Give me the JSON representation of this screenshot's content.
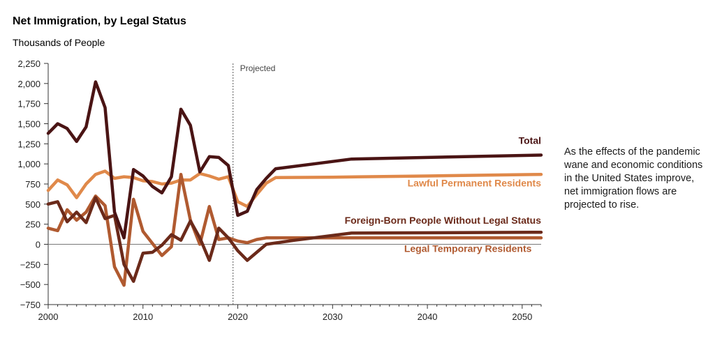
{
  "chart_data": {
    "type": "line",
    "title": "Net Immigration, by Legal Status",
    "ylabel": "Thousands of People",
    "xlabel": "",
    "xlim": [
      2000,
      2052
    ],
    "ylim": [
      -750,
      2250
    ],
    "xticks": [
      2000,
      2010,
      2020,
      2030,
      2040,
      2050
    ],
    "yticks": [
      -750,
      -500,
      -250,
      0,
      250,
      500,
      750,
      1000,
      1250,
      1500,
      1750,
      2000,
      2250
    ],
    "ytick_labels": [
      "−750",
      "−500",
      "−250",
      "0",
      "250",
      "500",
      "750",
      "1,000",
      "1,250",
      "1,500",
      "1,750",
      "2,000",
      "2,250"
    ],
    "projection_start": 2019.5,
    "projection_label": "Projected",
    "series": [
      {
        "name": "Total",
        "color": "#4a1414",
        "x": [
          2000,
          2001,
          2002,
          2003,
          2004,
          2005,
          2006,
          2007,
          2008,
          2009,
          2010,
          2011,
          2012,
          2013,
          2014,
          2015,
          2016,
          2017,
          2018,
          2019,
          2020,
          2021,
          2022,
          2023,
          2024,
          2028,
          2032,
          2040,
          2052
        ],
        "values": [
          1380,
          1500,
          1440,
          1280,
          1460,
          2020,
          1700,
          400,
          80,
          930,
          850,
          720,
          640,
          840,
          1680,
          1480,
          900,
          1090,
          1080,
          980,
          360,
          410,
          680,
          820,
          940,
          1000,
          1060,
          1080,
          1110
        ]
      },
      {
        "name": "Lawful Permanent Residents",
        "color": "#e0894a",
        "x": [
          2000,
          2001,
          2002,
          2003,
          2004,
          2005,
          2006,
          2007,
          2008,
          2009,
          2010,
          2011,
          2012,
          2013,
          2014,
          2015,
          2016,
          2017,
          2018,
          2019,
          2020,
          2021,
          2022,
          2023,
          2024,
          2030,
          2040,
          2052
        ],
        "values": [
          670,
          800,
          740,
          580,
          750,
          870,
          910,
          820,
          840,
          830,
          790,
          780,
          750,
          760,
          800,
          800,
          880,
          850,
          810,
          840,
          530,
          470,
          620,
          760,
          830,
          835,
          850,
          870
        ]
      },
      {
        "name": "Foreign-Born People Without Legal Status",
        "color": "#6b2a1a",
        "x": [
          2000,
          2001,
          2002,
          2003,
          2004,
          2005,
          2006,
          2007,
          2008,
          2009,
          2010,
          2011,
          2012,
          2013,
          2014,
          2015,
          2016,
          2017,
          2018,
          2019,
          2020,
          2021,
          2022,
          2023,
          2026,
          2032,
          2052
        ],
        "values": [
          500,
          530,
          280,
          400,
          270,
          580,
          320,
          360,
          -250,
          -460,
          -110,
          -100,
          -10,
          120,
          50,
          290,
          80,
          -200,
          200,
          80,
          -80,
          -200,
          -100,
          0,
          50,
          140,
          150
        ]
      },
      {
        "name": "Legal Temporary Residents",
        "color": "#b05a30",
        "x": [
          2000,
          2001,
          2002,
          2003,
          2004,
          2005,
          2006,
          2007,
          2008,
          2009,
          2010,
          2011,
          2012,
          2013,
          2014,
          2015,
          2016,
          2017,
          2018,
          2019,
          2020,
          2021,
          2022,
          2023,
          2024,
          2030,
          2052
        ],
        "values": [
          200,
          170,
          430,
          300,
          400,
          600,
          480,
          -280,
          -510,
          560,
          160,
          10,
          -140,
          -30,
          870,
          300,
          0,
          470,
          60,
          80,
          40,
          20,
          60,
          80,
          80,
          80,
          80
        ]
      }
    ],
    "labels": [
      {
        "series": 0,
        "text": "Total",
        "at": [
          2052,
          1250
        ],
        "anchor": "end"
      },
      {
        "series": 1,
        "text": "Lawful Permanent Residents",
        "at": [
          2052,
          720
        ],
        "anchor": "end"
      },
      {
        "series": 2,
        "text": "Foreign-Born People Without Legal Status",
        "at": [
          2052,
          255
        ],
        "anchor": "end"
      },
      {
        "series": 3,
        "text": "Legal Temporary Residents",
        "at": [
          2051,
          -95
        ],
        "anchor": "end"
      }
    ]
  },
  "note": "As the effects of the pandemic wane and economic conditions in the United States improve, net immigration flows are projected to rise."
}
